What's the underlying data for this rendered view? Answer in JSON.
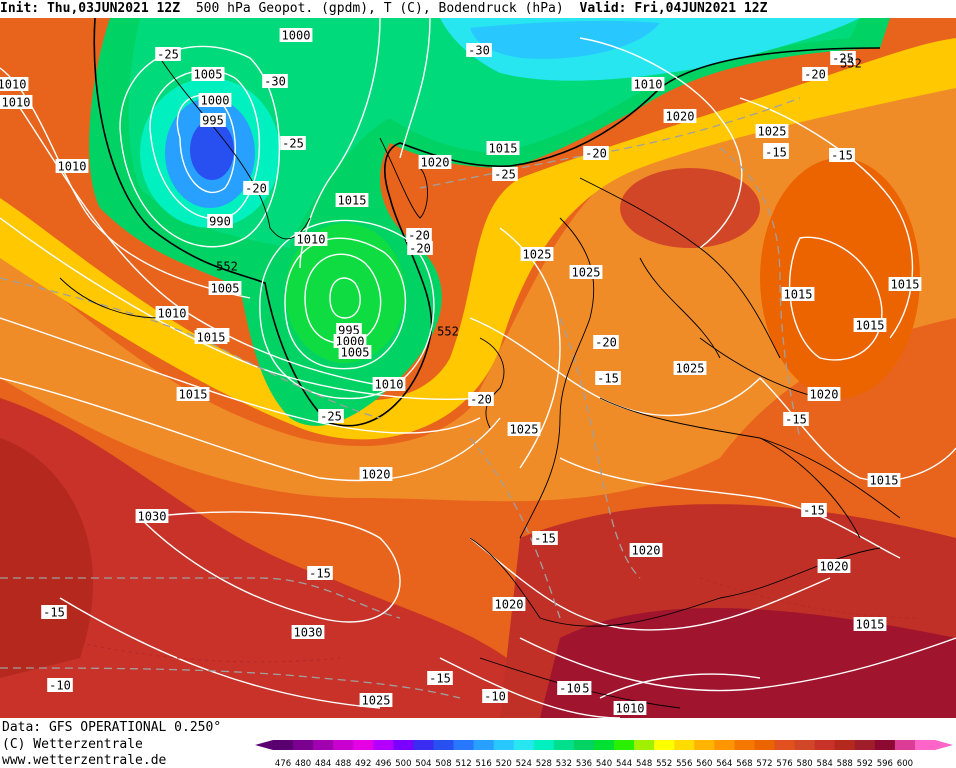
{
  "header": {
    "init_label": "Init:",
    "init_value": "Thu,03JUN2021 12Z",
    "product": "500 hPa Geopot. (gpdm), T (C), Bodendruck (hPa)",
    "valid_label": "Valid:",
    "valid_value": "Fri,04JUN2021 12Z"
  },
  "footer": {
    "data_line": "Data: GFS OPERATIONAL 0.250°",
    "copyright_line": "(C) Wetterzentrale",
    "url_line": "www.wetterzentrale.de"
  },
  "colorbar": {
    "ticks": [
      "476",
      "480",
      "484",
      "488",
      "492",
      "496",
      "500",
      "504",
      "508",
      "512",
      "516",
      "520",
      "524",
      "528",
      "532",
      "536",
      "540",
      "544",
      "548",
      "552",
      "556",
      "560",
      "564",
      "568",
      "572",
      "576",
      "580",
      "584",
      "588",
      "592",
      "596",
      "600"
    ],
    "colors": [
      "#5a0070",
      "#7a0090",
      "#a000b0",
      "#c800d0",
      "#e600e6",
      "#b400ff",
      "#7a00ff",
      "#3a2cf0",
      "#2850f0",
      "#2878ff",
      "#28a0ff",
      "#28c8ff",
      "#28e6f0",
      "#00f0c0",
      "#00e08c",
      "#00d264",
      "#00e032",
      "#28f000",
      "#a0f000",
      "#ffff00",
      "#ffdc00",
      "#ffb400",
      "#ff9600",
      "#f57800",
      "#eb6400",
      "#e1501e",
      "#d24628",
      "#c83228",
      "#b4281e",
      "#a01e2a",
      "#8c0a32",
      "#dc3c96",
      "#ff64c8"
    ]
  },
  "map": {
    "pressure_labels": [
      "1010",
      "1000",
      "1005",
      "1010",
      "1005",
      "1000",
      "995",
      "1010",
      "990",
      "1015",
      "1010",
      "1020",
      "1015",
      "1025",
      "1020",
      "1025",
      "1015",
      "1005",
      "1010",
      "1015",
      "995",
      "1000",
      "1005",
      "1010",
      "1015",
      "1025",
      "1025",
      "1025",
      "1020",
      "1015",
      "1015",
      "1020",
      "1020",
      "1030",
      "1030",
      "1020",
      "1020",
      "1020",
      "1025",
      "1015",
      "1010",
      "1015",
      "1010",
      "1015",
      "1025",
      "1015",
      "1015"
    ],
    "temperature_labels": [
      "-25",
      "-30",
      "-30",
      "-25",
      "-20",
      "-20",
      "-25",
      "-20",
      "-25",
      "-20",
      "-20",
      "-15",
      "-15",
      "-20",
      "-15",
      "-15",
      "-15",
      "-15",
      "-15",
      "-15",
      "-10",
      "-10",
      "-15",
      "-10",
      "-25",
      "-20",
      "-15",
      "-15"
    ],
    "height_labels": [
      "552",
      "552",
      "552"
    ]
  }
}
